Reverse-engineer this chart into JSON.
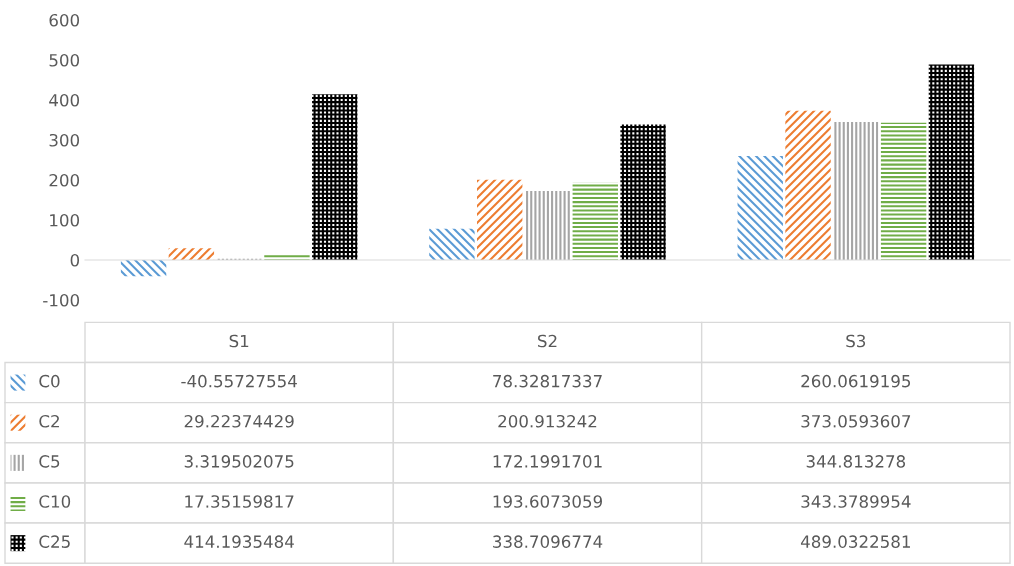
{
  "chart_data": {
    "type": "bar",
    "categories": [
      "S1",
      "S2",
      "S3"
    ],
    "series": [
      {
        "name": "C0",
        "color": "#5b9bd5",
        "values": [
          -40.55727554,
          78.32817337,
          260.0619195
        ]
      },
      {
        "name": "C2",
        "color": "#ed7d31",
        "values": [
          29.22374429,
          200.913242,
          373.0593607
        ]
      },
      {
        "name": "C5",
        "color": "#a5a5a5",
        "values": [
          3.319502075,
          172.1991701,
          344.813278
        ]
      },
      {
        "name": "C10",
        "color": "#70ad47",
        "values": [
          17.35159817,
          193.6073059,
          343.3789954
        ]
      },
      {
        "name": "C25",
        "color": "#000000",
        "values": [
          414.1935484,
          338.7096774,
          489.0322581
        ]
      }
    ],
    "ylim": [
      -100,
      600
    ],
    "yticks": [
      -100,
      0,
      100,
      200,
      300,
      400,
      500,
      600
    ],
    "legend": "bottom",
    "data_labels": true
  }
}
